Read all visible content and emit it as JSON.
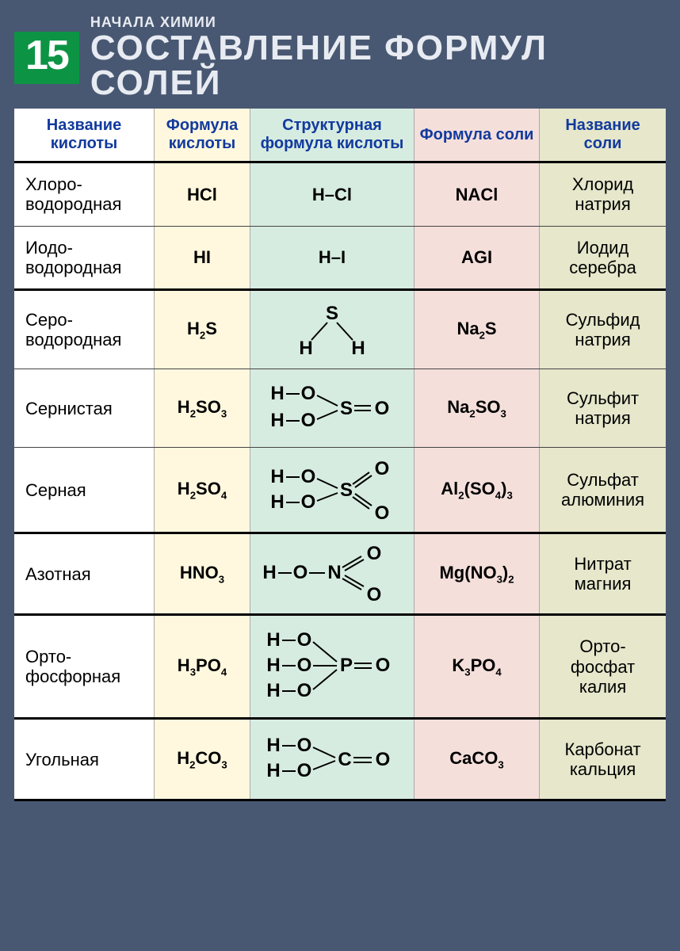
{
  "header": {
    "number": "15",
    "kicker": "НАЧАЛА ХИМИИ",
    "title": "СОСТАВЛЕНИЕ ФОРМУЛ СОЛЕЙ"
  },
  "table": {
    "columns": [
      "Название кислоты",
      "Формула кислоты",
      "Структурная формула кислоты",
      "Формула соли",
      "Название соли"
    ],
    "column_backgrounds": [
      "#ffffff",
      "#fff8de",
      "#d7ece1",
      "#f4dfdb",
      "#e6e7cb"
    ],
    "header_text_color": "#123a9e",
    "border_color": "#000000",
    "groups": [
      {
        "rows": [
          {
            "acid_name": "Хлоро-\nводородная",
            "acid_formula": "HCl",
            "structural": "H–Cl",
            "salt_formula": "NACl",
            "salt_name": "Хлорид натрия"
          },
          {
            "acid_name": "Иодо-\nводородная",
            "acid_formula": "HI",
            "structural": "H–I",
            "salt_formula": "AGI",
            "salt_name": "Иодид серебра"
          }
        ]
      },
      {
        "rows": [
          {
            "acid_name": "Серо-\nводородная",
            "acid_formula": "H₂S",
            "structural_svg": "h2s",
            "salt_formula": "Na₂S",
            "salt_name": "Сульфид натрия"
          },
          {
            "acid_name": "Сернистая",
            "acid_formula": "H₂SO₃",
            "structural_svg": "h2so3",
            "salt_formula": "Na₂SO₃",
            "salt_name": "Сульфит натрия"
          },
          {
            "acid_name": "Серная",
            "acid_formula": "H₂SO₄",
            "structural_svg": "h2so4",
            "salt_formula": "Al₂(SO₄)₃",
            "salt_name": "Сульфат алюминия"
          }
        ]
      },
      {
        "rows": [
          {
            "acid_name": "Азотная",
            "acid_formula": "HNO₃",
            "structural_svg": "hno3",
            "salt_formula": "Mg(NO₃)₂",
            "salt_name": "Нитрат магния"
          }
        ]
      },
      {
        "rows": [
          {
            "acid_name": "Орто-\nфосфорная",
            "acid_formula": "H₃PO₄",
            "structural_svg": "h3po4",
            "salt_formula": "K₃PO₄",
            "salt_name": "Орто-\nфосфат калия"
          }
        ]
      },
      {
        "rows": [
          {
            "acid_name": "Угольная",
            "acid_formula": "H₂CO₃",
            "structural_svg": "h2co3",
            "salt_formula": "CaCO₃",
            "salt_name": "Карбонат кальция"
          }
        ]
      }
    ]
  },
  "styling": {
    "page_background": "#495872",
    "num_box_color": "#0c9444",
    "text_light": "#e8ecf2",
    "cell_font_size": 22,
    "header_font_size": 20,
    "title_font_size": 44
  }
}
